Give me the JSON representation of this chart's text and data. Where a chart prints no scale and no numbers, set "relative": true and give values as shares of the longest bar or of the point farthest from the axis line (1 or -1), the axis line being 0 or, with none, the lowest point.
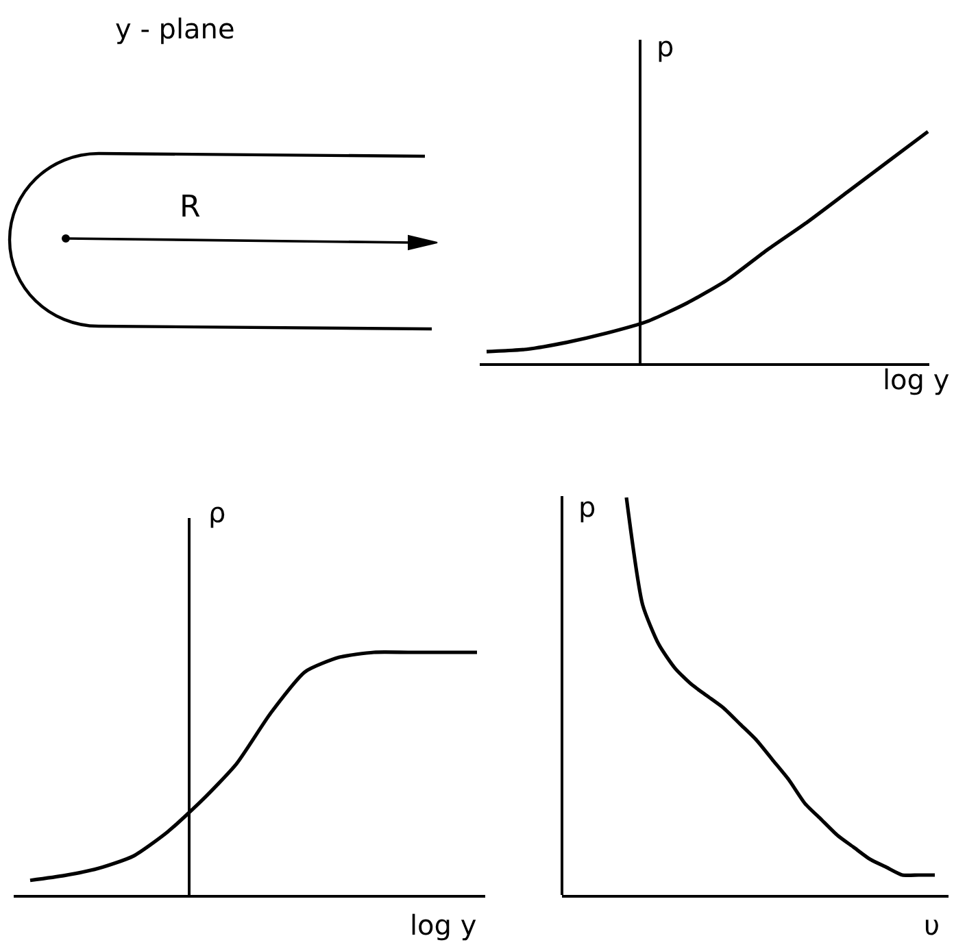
{
  "chart_data": [
    {
      "type": "other",
      "title": "y - plane",
      "annotations": [
        "R"
      ]
    },
    {
      "type": "line",
      "relative": true,
      "xlabel": "log y",
      "ylabel": "p",
      "color": "#000000",
      "categories": [
        null,
        null,
        null,
        null,
        null,
        null,
        null,
        null,
        null,
        null,
        null,
        null
      ],
      "values": [
        0.05,
        0.06,
        0.09,
        0.13,
        0.18,
        0.26,
        0.36,
        0.49,
        0.61,
        0.74,
        0.87,
        1.0
      ]
    },
    {
      "type": "line",
      "relative": true,
      "xlabel": "log y",
      "ylabel": "ρ",
      "color": "#000000",
      "categories": [
        null,
        null,
        null,
        null,
        null,
        null,
        null,
        null,
        null,
        null,
        null,
        null,
        null,
        null
      ],
      "values": [
        0.06,
        0.08,
        0.11,
        0.16,
        0.26,
        0.39,
        0.54,
        0.75,
        0.92,
        0.98,
        1.0,
        1.0,
        1.0,
        1.0
      ]
    },
    {
      "type": "line",
      "relative": true,
      "xlabel": "υ",
      "ylabel": "p",
      "color": "#000000",
      "categories": [
        null,
        null,
        null,
        null,
        null,
        null,
        null,
        null,
        null,
        null,
        null,
        null,
        null,
        null,
        null,
        null,
        null,
        null,
        null,
        null
      ],
      "values": [
        1.0,
        0.73,
        0.63,
        0.57,
        0.53,
        0.5,
        0.47,
        0.43,
        0.39,
        0.34,
        0.29,
        0.23,
        0.19,
        0.15,
        0.12,
        0.09,
        0.07,
        0.05,
        0.05,
        0.05
      ]
    }
  ]
}
